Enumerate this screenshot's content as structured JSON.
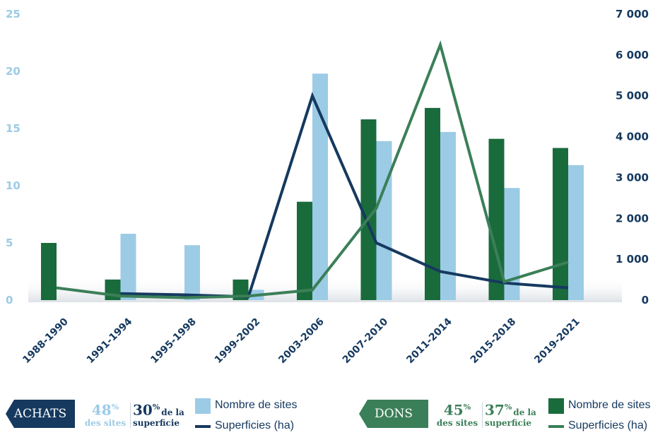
{
  "chart_data": {
    "type": "bar",
    "categories": [
      "1988-1990",
      "1991-1994",
      "1995-1998",
      "1999-2002",
      "2003-2006",
      "2007-2010",
      "2011-2014",
      "2015-2018",
      "2019-2021"
    ],
    "y_left": {
      "ticks": [
        "0",
        "5",
        "10",
        "15",
        "20",
        "25"
      ],
      "lim": [
        0,
        25
      ]
    },
    "y_right": {
      "ticks": [
        "0",
        "1 000",
        "2 000",
        "3 000",
        "4 000",
        "5 000",
        "6 000",
        "7 000"
      ],
      "lim": [
        0,
        7000
      ]
    },
    "series": [
      {
        "name": "Nombre de sites",
        "group": "DONS",
        "kind": "bar",
        "axis": "left",
        "color": "#1a6b3c",
        "values": [
          5,
          1.8,
          0,
          1.8,
          8.6,
          15.8,
          16.8,
          14.1,
          13.3
        ]
      },
      {
        "name": "Nombre de sites",
        "group": "ACHATS",
        "kind": "bar",
        "axis": "left",
        "color": "#9ccbe6",
        "values": [
          0,
          5.8,
          4.8,
          0.9,
          19.8,
          13.9,
          14.7,
          9.8,
          11.8
        ]
      },
      {
        "name": "Superficies (ha)",
        "group": "ACHATS",
        "kind": "line",
        "axis": "right",
        "color": "#15395f",
        "values": [
          null,
          160,
          130,
          80,
          5000,
          1400,
          700,
          420,
          300
        ]
      },
      {
        "name": "Superficies (ha)",
        "group": "DONS",
        "kind": "line",
        "axis": "right",
        "color": "#3b7f58",
        "values": [
          300,
          100,
          60,
          100,
          250,
          2250,
          6250,
          450,
          930
        ]
      }
    ]
  },
  "legend": {
    "achats": {
      "tag": "ACHATS",
      "pct_sites": "48",
      "pct_sites_sym": "%",
      "sites_label": "des sites",
      "pct_area": "30",
      "pct_area_sym": "%",
      "area_label_1": "de la",
      "area_label_2": "superficie",
      "bar_label": "Nombre de sites",
      "line_label": "Superficies (ha)"
    },
    "dons": {
      "tag": "DONS",
      "pct_sites": "45",
      "pct_sites_sym": "%",
      "sites_label": "des sites",
      "pct_area": "37",
      "pct_area_sym": "%",
      "area_label_1": "de la",
      "area_label_2": "superficie",
      "bar_label": "Nombre de sites",
      "line_label": "Superficies (ha)"
    }
  }
}
